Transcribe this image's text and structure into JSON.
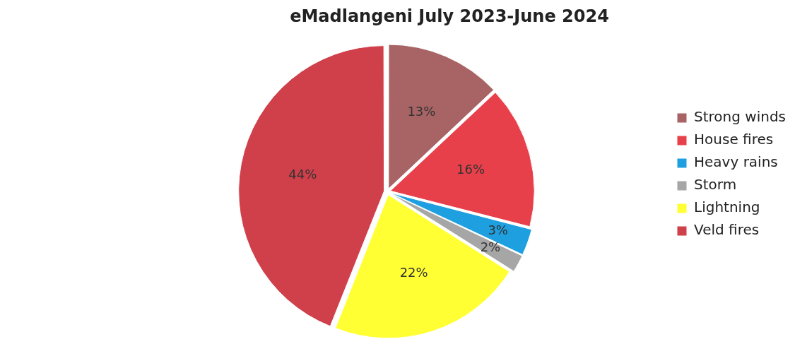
{
  "chart_data": {
    "type": "pie",
    "title": "eMadlangeni July 2023-June 2024",
    "categories": [
      "Strong winds",
      "House fires",
      "Heavy rains",
      "Storm",
      "Lightning",
      "Veld fires"
    ],
    "values": [
      13,
      16,
      3,
      2,
      22,
      44
    ],
    "colors": [
      "#a86464",
      "#e8404a",
      "#1ea0e0",
      "#a6a6a6",
      "#ffff33",
      "#d0404a"
    ],
    "value_labels": [
      "13%",
      "16%",
      "3%",
      "2%",
      "22%",
      "44%"
    ],
    "legend": "right"
  }
}
